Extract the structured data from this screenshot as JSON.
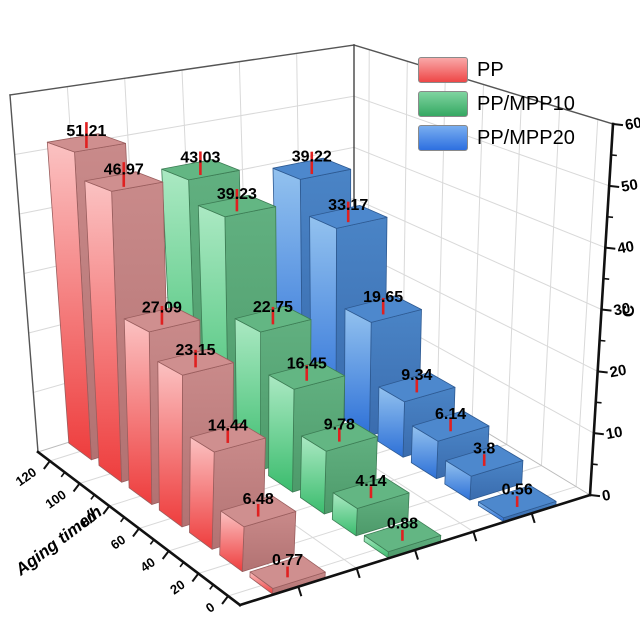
{
  "legend": {
    "items": [
      {
        "label": "PP",
        "swatch_top": "#f9a8a8",
        "swatch_bottom": "#ee4747"
      },
      {
        "label": "PP/MPP10",
        "swatch_top": "#7fd4a0",
        "swatch_bottom": "#35a862"
      },
      {
        "label": "PP/MPP20",
        "swatch_top": "#79aef0",
        "swatch_bottom": "#2d6fe0"
      }
    ]
  },
  "axes": {
    "value_axis": {
      "title": "C",
      "min": 0,
      "max": 60,
      "major_step": 10,
      "tick_labels": [
        "0",
        "10",
        "20",
        "30",
        "40",
        "50",
        "60"
      ]
    },
    "aging_axis": {
      "title": "Aging time/h",
      "min": 0,
      "max": 120,
      "major_step": 20,
      "tick_labels": [
        "0",
        "20",
        "40",
        "60",
        "80",
        "100",
        "120"
      ]
    }
  },
  "chart_data": {
    "type": "bar",
    "projection": "3d",
    "title": "",
    "xlabel": "Aging time/h",
    "zlabel": "C",
    "categories": [
      0,
      20,
      40,
      60,
      80,
      100,
      120
    ],
    "zlim": [
      0,
      60
    ],
    "grid": true,
    "legend_position": "top-right",
    "error_bar_color": "#e02020",
    "series": [
      {
        "name": "PP",
        "values": [
          0.77,
          6.48,
          14.44,
          23.15,
          27.09,
          46.97,
          51.21
        ],
        "labels": [
          "0.77",
          "6.48",
          "14.44",
          "23.15",
          "27.09",
          "46.97",
          "51.21"
        ],
        "face_light": "#fbc2c2",
        "face_dark": "#ee3d3d",
        "top": "#cf8f8f",
        "side_light": "#c98a8a",
        "side_dark": "#b27272",
        "edge": "#9a5e5e"
      },
      {
        "name": "PP/MPP10",
        "values": [
          0.88,
          4.14,
          9.78,
          16.45,
          22.75,
          39.23,
          43.03
        ],
        "labels": [
          "0.88",
          "4.14",
          "9.78",
          "16.45",
          "22.75",
          "39.23",
          "43.03"
        ],
        "face_light": "#abe9c3",
        "face_dark": "#3abc6d",
        "top": "#63b683",
        "side_light": "#61b080",
        "side_dark": "#4d9a6a",
        "edge": "#3d7d55"
      },
      {
        "name": "PP/MPP20",
        "values": [
          0.56,
          3.8,
          6.14,
          9.34,
          19.65,
          33.17,
          39.22
        ],
        "labels": [
          "0.56",
          "3.8",
          "6.14",
          "9.34",
          "19.65",
          "33.17",
          "39.22"
        ],
        "face_light": "#93c2ef",
        "face_dark": "#2d70d7",
        "top": "#4d88cd",
        "side_light": "#4a84c6",
        "side_dark": "#3a6cae",
        "edge": "#2e5a92"
      }
    ]
  },
  "colors": {
    "grid": "#d9d9d9",
    "frame": "#777777",
    "axis": "#111111",
    "label": "#000000"
  }
}
